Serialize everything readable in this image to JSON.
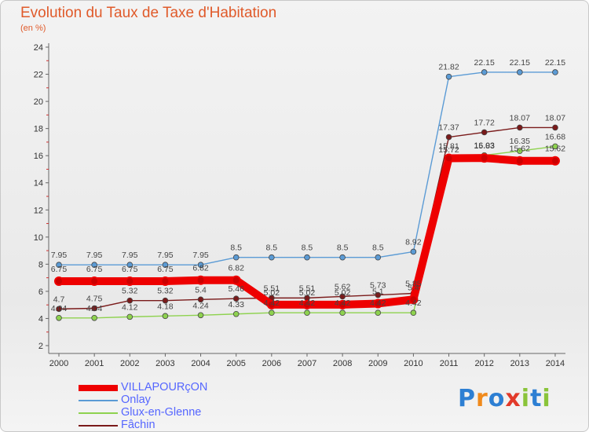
{
  "header": {
    "title": "Evolution du Taux de Taxe d'Habitation",
    "unit": "(en %)"
  },
  "logo": {
    "text": "Proxiti",
    "colors": [
      "#2d7fd3",
      "#f08a1c",
      "#2d7fd3",
      "#e23a2a",
      "#8ac43a",
      "#2d7fd3",
      "#8ac43a"
    ]
  },
  "chart_data": {
    "type": "line",
    "title": "Evolution du Taux de Taxe d'Habitation",
    "ylabel": "(en %)",
    "xlabel": "",
    "ylim": [
      2,
      24
    ],
    "yticks": [
      2,
      4,
      6,
      8,
      10,
      12,
      14,
      16,
      18,
      20,
      22,
      24
    ],
    "grid": false,
    "legend_position": "bottom-left",
    "categories": [
      "2000",
      "2001",
      "2002",
      "2003",
      "2004",
      "2005",
      "2006",
      "2007",
      "2008",
      "2009",
      "2010",
      "2011",
      "2012",
      "2013",
      "2014"
    ],
    "series": [
      {
        "name": "VILLAPOURçON",
        "color": "#ee0000",
        "values": [
          6.75,
          6.75,
          6.75,
          6.75,
          6.82,
          6.82,
          5.02,
          5.02,
          5.02,
          5.1,
          5.4,
          15.81,
          15.83,
          15.62,
          15.62
        ],
        "labels": [
          "6.75",
          "6.75",
          "6.75",
          "6.75",
          "6.82",
          "6.82",
          "5.02",
          "5.02",
          "5.02",
          "5.1",
          "5.4",
          "15.81",
          "15.83",
          "15.62",
          "15.62"
        ]
      },
      {
        "name": "Onlay",
        "color": "#5b9bd5",
        "values": [
          7.95,
          7.95,
          7.95,
          7.95,
          7.95,
          8.5,
          8.5,
          8.5,
          8.5,
          8.5,
          8.92,
          21.82,
          22.15,
          22.15,
          22.15
        ],
        "labels": [
          "7.95",
          "7.95",
          "7.95",
          "7.95",
          "7.95",
          "8.5",
          "8.5",
          "8.5",
          "8.5",
          "8.5",
          "8.92",
          "21.82",
          "22.15",
          "22.15",
          "22.15"
        ]
      },
      {
        "name": "Glux-en-Glenne",
        "color": "#8ed24f",
        "values": [
          4.04,
          4.04,
          4.12,
          4.18,
          4.24,
          4.33,
          4.42,
          4.42,
          4.42,
          4.42,
          4.42,
          15.72,
          16.03,
          16.35,
          16.68
        ],
        "labels": [
          "4.04",
          "4.04",
          "4.12",
          "4.18",
          "4.24",
          "4.33",
          "4.42",
          "4.42",
          "4.42",
          "4.42",
          "4.42",
          "15.72",
          "16.03",
          "16.35",
          "16.68"
        ]
      },
      {
        "name": "Fâchin",
        "color": "#7a1a1a",
        "values": [
          4.7,
          4.75,
          5.32,
          5.32,
          5.4,
          5.46,
          5.51,
          5.51,
          5.62,
          5.73,
          5.85,
          17.37,
          17.72,
          18.07,
          18.07
        ],
        "labels": [
          "4.7",
          "4.75",
          "5.32",
          "5.32",
          "5.4",
          "5.46",
          "5.51",
          "5.51",
          "5.62",
          "5.73",
          "5.85",
          "17.37",
          "17.72",
          "18.07",
          "18.07"
        ]
      }
    ]
  }
}
